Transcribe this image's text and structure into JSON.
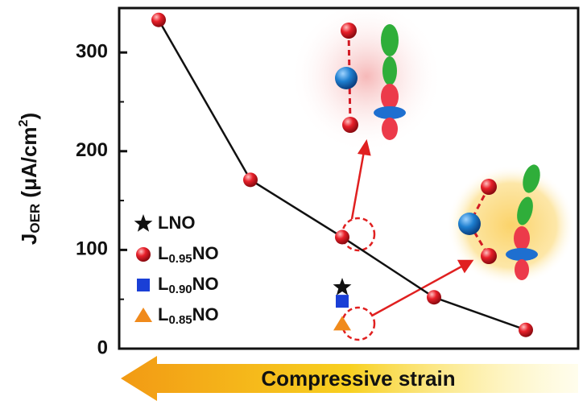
{
  "chart_data": {
    "type": "line",
    "ylabel": [
      "J",
      "OER",
      " (μA/cm",
      "2",
      ")"
    ],
    "categories": [
      null,
      null,
      null,
      null,
      null
    ],
    "ylim": [
      0,
      345
    ],
    "yticks": [
      0,
      100,
      200,
      300
    ],
    "yminorticks": [
      50,
      150,
      250
    ],
    "annotation": "Compressive strain",
    "series": [
      {
        "name": "LNO",
        "color": "#111111",
        "marker": "star",
        "line": false,
        "values": [
          null,
          null,
          62,
          null,
          null
        ]
      },
      {
        "name": "L0.95NO",
        "color": "#e8202a",
        "marker": "sphere",
        "line": true,
        "values": [
          333,
          171,
          113,
          52,
          19
        ]
      },
      {
        "name": "L0.90NO",
        "color": "#1a3fd6",
        "marker": "square",
        "line": false,
        "values": [
          null,
          null,
          48,
          null,
          null
        ]
      },
      {
        "name": "L0.85NO",
        "color": "#f08a1c",
        "marker": "triangle",
        "line": false,
        "values": [
          null,
          null,
          25,
          null,
          null
        ]
      }
    ]
  }
}
